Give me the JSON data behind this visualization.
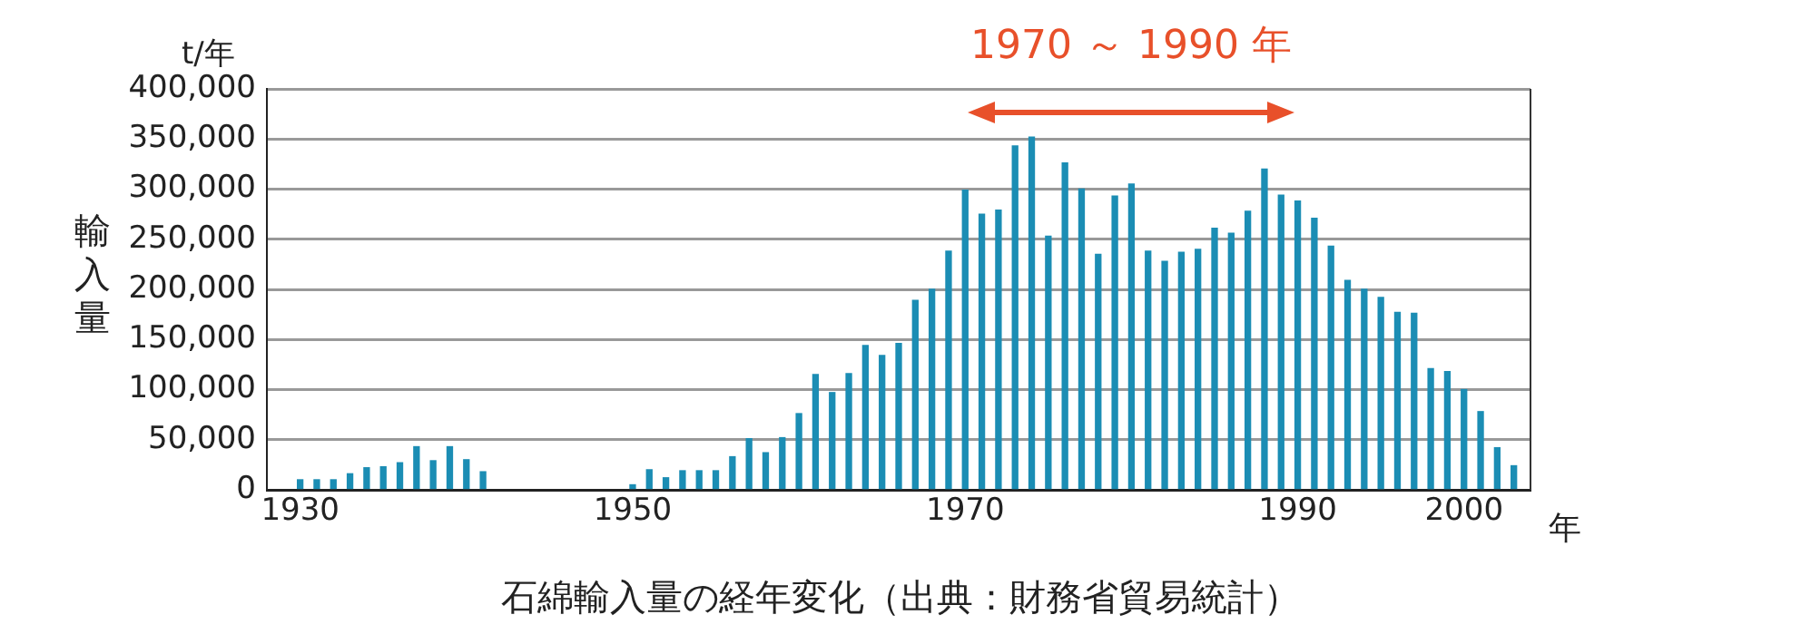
{
  "chart_data": {
    "type": "bar",
    "title": "石綿輸入量の経年変化（出典：財務省貿易統計）",
    "xlabel": "年",
    "ylabel": "輸入量",
    "annotations": [
      "t/年",
      "1970 ～ 1990 年"
    ],
    "x": [
      1930,
      1931,
      1932,
      1933,
      1934,
      1935,
      1936,
      1937,
      1938,
      1939,
      1940,
      1941,
      1950,
      1951,
      1952,
      1953,
      1954,
      1955,
      1956,
      1957,
      1958,
      1959,
      1960,
      1961,
      1962,
      1963,
      1964,
      1965,
      1966,
      1967,
      1968,
      1969,
      1970,
      1971,
      1972,
      1973,
      1974,
      1975,
      1976,
      1977,
      1978,
      1979,
      1980,
      1981,
      1982,
      1983,
      1984,
      1985,
      1986,
      1987,
      1988,
      1989,
      1990,
      1991,
      1992,
      1993,
      1994,
      1995,
      1996,
      1997,
      1998,
      1999,
      2000,
      2001,
      2002,
      2003
    ],
    "values": [
      10000,
      10000,
      10000,
      16000,
      22000,
      23000,
      27000,
      43000,
      29000,
      43000,
      30000,
      18000,
      5000,
      20000,
      12000,
      19000,
      19000,
      19000,
      33000,
      51000,
      37000,
      52000,
      76000,
      115000,
      97000,
      116000,
      144000,
      134000,
      146000,
      189000,
      200000,
      238000,
      299000,
      275000,
      279000,
      343000,
      352000,
      253000,
      326000,
      300000,
      235000,
      293000,
      305000,
      238000,
      228000,
      237000,
      240000,
      261000,
      256000,
      278000,
      320000,
      294000,
      288000,
      271000,
      243000,
      209000,
      200000,
      192000,
      177000,
      176000,
      121000,
      118000,
      100000,
      78000,
      42000,
      24000
    ],
    "color": "#1b8db4",
    "xlim": [
      1928,
      2004
    ],
    "xticks": [
      1930,
      1950,
      1970,
      1990,
      2000
    ],
    "ylim": [
      0,
      400000
    ],
    "yticks": [
      {
        "value": 0,
        "label": "0"
      },
      {
        "value": 50000,
        "label": "50,000"
      },
      {
        "value": 100000,
        "label": "100,000"
      },
      {
        "value": 150000,
        "label": "150,000"
      },
      {
        "value": 200000,
        "label": "200,000"
      },
      {
        "value": 250000,
        "label": "250,000"
      },
      {
        "value": 300000,
        "label": "300,000"
      },
      {
        "value": 350000,
        "label": "350,000"
      },
      {
        "value": 400000,
        "label": "400,000"
      }
    ],
    "grid": "y",
    "legend": false
  }
}
